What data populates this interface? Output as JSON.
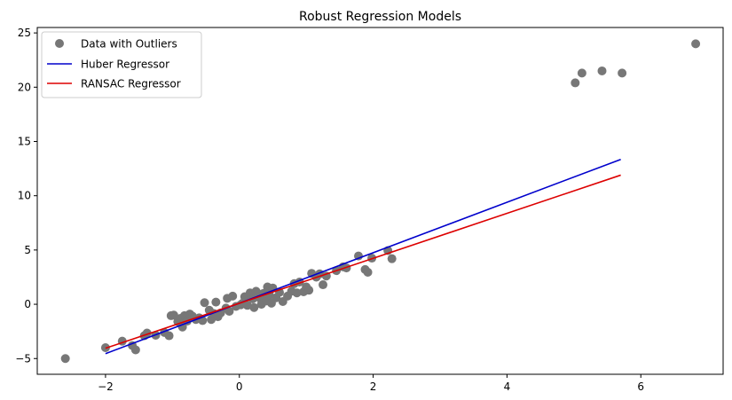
{
  "chart_data": {
    "type": "scatter",
    "title": "Robust Regression Models",
    "xlabel": "",
    "ylabel": "",
    "xlim": [
      -3.02,
      7.23
    ],
    "ylim": [
      -6.45,
      25.5
    ],
    "xticks": [
      -2,
      0,
      2,
      4,
      6
    ],
    "yticks": [
      -5,
      0,
      5,
      10,
      15,
      20,
      25
    ],
    "grid": false,
    "legend_position": "top-left",
    "scatter": {
      "name": "Data with Outliers",
      "color": "#777777",
      "points": [
        [
          -2.6,
          -5.0
        ],
        [
          -2.0,
          -4.0
        ],
        [
          -1.75,
          -3.4
        ],
        [
          -1.6,
          -3.8
        ],
        [
          -1.55,
          -4.2
        ],
        [
          -1.42,
          -2.9
        ],
        [
          -1.38,
          -2.65
        ],
        [
          -1.25,
          -2.85
        ],
        [
          -1.12,
          -2.6
        ],
        [
          -1.05,
          -2.9
        ],
        [
          -1.02,
          -1.05
        ],
        [
          -0.98,
          -1.0
        ],
        [
          -0.92,
          -1.6
        ],
        [
          -0.88,
          -1.3
        ],
        [
          -0.85,
          -2.1
        ],
        [
          -0.82,
          -1.05
        ],
        [
          -0.78,
          -1.55
        ],
        [
          -0.74,
          -0.9
        ],
        [
          -0.7,
          -1.1
        ],
        [
          -0.65,
          -1.4
        ],
        [
          -0.6,
          -1.25
        ],
        [
          -0.55,
          -1.5
        ],
        [
          -0.52,
          0.15
        ],
        [
          -0.45,
          -0.55
        ],
        [
          -0.42,
          -1.4
        ],
        [
          -0.38,
          -0.85
        ],
        [
          -0.35,
          0.2
        ],
        [
          -0.32,
          -1.15
        ],
        [
          -0.28,
          -0.8
        ],
        [
          -0.2,
          -0.35
        ],
        [
          -0.18,
          0.55
        ],
        [
          -0.15,
          -0.65
        ],
        [
          -0.1,
          0.75
        ],
        [
          -0.05,
          -0.2
        ],
        [
          0.02,
          -0.05
        ],
        [
          0.05,
          0.1
        ],
        [
          0.08,
          0.7
        ],
        [
          0.12,
          -0.1
        ],
        [
          0.16,
          1.05
        ],
        [
          0.2,
          0.5
        ],
        [
          0.22,
          -0.3
        ],
        [
          0.25,
          1.2
        ],
        [
          0.3,
          0.6
        ],
        [
          0.33,
          0.0
        ],
        [
          0.36,
          1.0
        ],
        [
          0.4,
          0.3
        ],
        [
          0.42,
          1.6
        ],
        [
          0.45,
          0.85
        ],
        [
          0.48,
          0.1
        ],
        [
          0.5,
          1.5
        ],
        [
          0.55,
          0.6
        ],
        [
          0.6,
          1.1
        ],
        [
          0.65,
          0.25
        ],
        [
          0.72,
          0.75
        ],
        [
          0.78,
          1.2
        ],
        [
          0.82,
          1.9
        ],
        [
          0.86,
          1.05
        ],
        [
          0.9,
          2.05
        ],
        [
          0.96,
          1.15
        ],
        [
          1.0,
          1.6
        ],
        [
          1.04,
          1.3
        ],
        [
          1.08,
          2.85
        ],
        [
          1.15,
          2.5
        ],
        [
          1.2,
          2.8
        ],
        [
          1.25,
          1.8
        ],
        [
          1.3,
          2.6
        ],
        [
          1.45,
          3.1
        ],
        [
          1.55,
          3.45
        ],
        [
          1.6,
          3.35
        ],
        [
          1.78,
          4.45
        ],
        [
          1.88,
          3.2
        ],
        [
          1.92,
          2.95
        ],
        [
          1.98,
          4.25
        ],
        [
          2.22,
          4.95
        ],
        [
          2.28,
          4.2
        ],
        [
          5.02,
          20.4
        ],
        [
          5.12,
          21.3
        ],
        [
          5.42,
          21.5
        ],
        [
          5.72,
          21.3
        ],
        [
          6.82,
          24.0
        ]
      ]
    },
    "series": [
      {
        "name": "Huber Regressor",
        "color": "#0000cc",
        "x": [
          -2.0,
          5.7
        ],
        "y": [
          -4.55,
          13.35
        ]
      },
      {
        "name": "RANSAC Regressor",
        "color": "#dd0000",
        "x": [
          -2.0,
          5.7
        ],
        "y": [
          -4.05,
          11.9
        ]
      }
    ]
  }
}
